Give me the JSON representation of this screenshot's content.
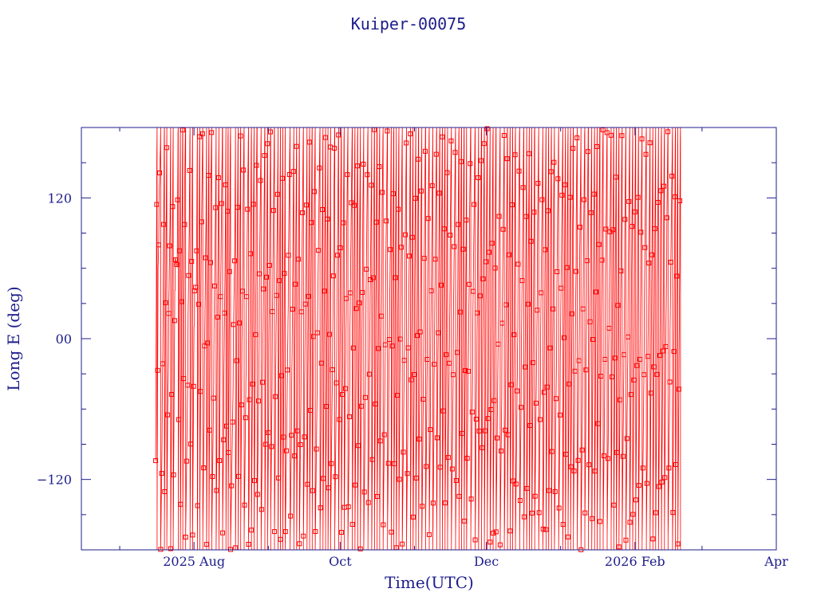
{
  "colors": {
    "axis": "#1c1c8c",
    "series": "#ff0000",
    "background": "#ffffff"
  },
  "chart_data": {
    "type": "line",
    "title": "Kuiper-00075",
    "xlabel": "Time(UTC)",
    "ylabel": "Long E (deg)",
    "xlim": [
      "2025-06-15",
      "2026-04-01"
    ],
    "ylim": [
      -180,
      180
    ],
    "x_tick_labels": [
      {
        "date": "2025-08-01",
        "label": "2025 Aug"
      },
      {
        "date": "2025-10-01",
        "label": "Oct"
      },
      {
        "date": "2025-12-01",
        "label": "Dec"
      },
      {
        "date": "2026-02-01",
        "label": "2026 Feb"
      },
      {
        "date": "2026-04-01",
        "label": "Apr"
      }
    ],
    "x_minor_ticks": [
      "2025-07-01",
      "2025-09-01",
      "2025-11-01",
      "2026-01-01",
      "2026-03-01"
    ],
    "y_ticks": [
      {
        "value": 120,
        "label": "120"
      },
      {
        "value": 0,
        "label": "00"
      },
      {
        "value": -120,
        "label": "−120"
      }
    ],
    "y_minor_ticks": [
      -150,
      -90,
      -60,
      -30,
      30,
      60,
      90,
      150
    ],
    "grid": false,
    "legend": "none",
    "series": [
      {
        "marker": "square",
        "start": "2025-07-16",
        "end": "2026-02-20",
        "wrap_period_days": 1.35,
        "points": [
          {
            "x": "2025-07-16",
            "y": -104
          },
          {
            "x": "2025-07-17",
            "y": 175
          },
          {
            "x": "2025-07-18",
            "y": 8
          },
          {
            "x": "2025-07-19",
            "y": -82
          },
          {
            "x": "2025-07-21",
            "y": 62
          },
          {
            "x": "2025-07-22",
            "y": -45
          },
          {
            "x": "2025-07-24",
            "y": 95
          },
          {
            "x": "2025-07-25",
            "y": -160
          },
          {
            "x": "2025-07-27",
            "y": 40
          },
          {
            "x": "2025-07-28",
            "y": 150
          },
          {
            "x": "2025-07-30",
            "y": -30
          },
          {
            "x": "2025-08-01",
            "y": 88
          },
          {
            "x": "2025-08-02",
            "y": -150
          },
          {
            "x": "2025-08-04",
            "y": 45
          },
          {
            "x": "2025-08-06",
            "y": -85
          },
          {
            "x": "2025-08-08",
            "y": 110
          },
          {
            "x": "2025-08-10",
            "y": -60
          },
          {
            "x": "2025-08-12",
            "y": 20
          },
          {
            "x": "2025-08-14",
            "y": -90
          },
          {
            "x": "2025-08-16",
            "y": 160
          },
          {
            "x": "2025-08-18",
            "y": -70
          },
          {
            "x": "2025-08-21",
            "y": 135
          },
          {
            "x": "2025-08-24",
            "y": -65
          },
          {
            "x": "2025-08-27",
            "y": 95
          },
          {
            "x": "2025-08-30",
            "y": -68
          },
          {
            "x": "2025-09-02",
            "y": 15
          },
          {
            "x": "2025-09-05",
            "y": -100
          },
          {
            "x": "2025-09-08",
            "y": 168
          },
          {
            "x": "2025-09-11",
            "y": -72
          },
          {
            "x": "2025-09-14",
            "y": 38
          },
          {
            "x": "2025-09-17",
            "y": -90
          },
          {
            "x": "2025-09-20",
            "y": 120
          },
          {
            "x": "2025-09-23",
            "y": -110
          },
          {
            "x": "2025-09-27",
            "y": 165
          },
          {
            "x": "2025-09-30",
            "y": 5
          },
          {
            "x": "2025-10-03",
            "y": 115
          },
          {
            "x": "2025-10-06",
            "y": -68
          },
          {
            "x": "2025-10-10",
            "y": 118
          },
          {
            "x": "2025-10-14",
            "y": -90
          },
          {
            "x": "2025-10-18",
            "y": 140
          },
          {
            "x": "2025-10-22",
            "y": -105
          },
          {
            "x": "2025-10-26",
            "y": 160
          },
          {
            "x": "2025-10-30",
            "y": -70
          },
          {
            "x": "2025-11-03",
            "y": 115
          },
          {
            "x": "2025-11-07",
            "y": 10
          },
          {
            "x": "2025-11-11",
            "y": -112
          },
          {
            "x": "2025-11-15",
            "y": 120
          },
          {
            "x": "2025-11-19",
            "y": -90
          },
          {
            "x": "2025-11-23",
            "y": 160
          },
          {
            "x": "2025-11-27",
            "y": -110
          },
          {
            "x": "2025-12-01",
            "y": 15
          },
          {
            "x": "2025-12-05",
            "y": 118
          },
          {
            "x": "2025-12-09",
            "y": -95
          },
          {
            "x": "2025-12-13",
            "y": 120
          },
          {
            "x": "2025-12-17",
            "y": -100
          },
          {
            "x": "2025-12-21",
            "y": 150
          },
          {
            "x": "2025-12-25",
            "y": -70
          },
          {
            "x": "2025-12-29",
            "y": 115
          },
          {
            "x": "2026-01-02",
            "y": -105
          },
          {
            "x": "2026-01-06",
            "y": 165
          },
          {
            "x": "2026-01-10",
            "y": 0
          },
          {
            "x": "2026-01-14",
            "y": -88
          },
          {
            "x": "2026-01-18",
            "y": 120
          },
          {
            "x": "2026-01-22",
            "y": -72
          },
          {
            "x": "2026-01-26",
            "y": 150
          },
          {
            "x": "2026-01-30",
            "y": 0
          },
          {
            "x": "2026-02-03",
            "y": 118
          },
          {
            "x": "2026-02-07",
            "y": -100
          },
          {
            "x": "2026-02-11",
            "y": 50
          },
          {
            "x": "2026-02-14",
            "y": 118
          },
          {
            "x": "2026-02-17",
            "y": -90
          },
          {
            "x": "2026-02-20",
            "y": 123
          }
        ]
      }
    ]
  }
}
